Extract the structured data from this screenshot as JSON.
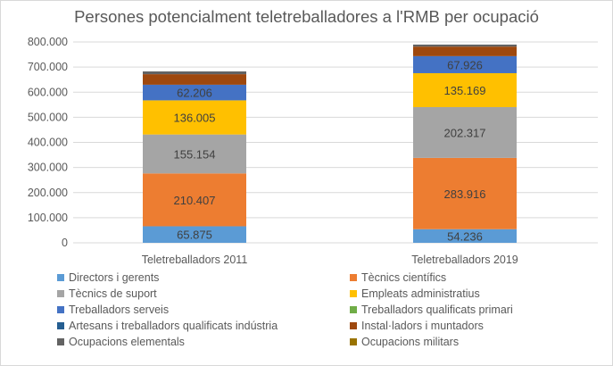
{
  "chart_data": {
    "type": "bar",
    "stacked": true,
    "title": "Persones potencialment teletreballadores a l'RMB per ocupació",
    "categories": [
      "Teletreballadors 2011",
      "Teletreballadors 2019"
    ],
    "ylim": [
      0,
      800000
    ],
    "yticks": [
      "0",
      "100.000",
      "200.000",
      "300.000",
      "400.000",
      "500.000",
      "600.000",
      "700.000",
      "800.000"
    ],
    "grid": true,
    "legend_position": "bottom",
    "series": [
      {
        "name": "Directors i gerents",
        "color": "#5b9bd5",
        "values": [
          65875,
          54236
        ],
        "labels": [
          "65.875",
          "54.236"
        ]
      },
      {
        "name": "Tècnics científics",
        "color": "#ed7d31",
        "values": [
          210407,
          283916
        ],
        "labels": [
          "210.407",
          "283.916"
        ]
      },
      {
        "name": "Tècnics de suport",
        "color": "#a5a5a5",
        "values": [
          155154,
          202317
        ],
        "labels": [
          "155.154",
          "202.317"
        ]
      },
      {
        "name": "Empleats administratius",
        "color": "#ffc000",
        "values": [
          136005,
          135169
        ],
        "labels": [
          "136.005",
          "135.169"
        ]
      },
      {
        "name": "Treballadors serveis",
        "color": "#4472c4",
        "values": [
          62206,
          67926
        ],
        "labels": [
          "62.206",
          "67.926"
        ]
      },
      {
        "name": "Treballadors qualificats primari",
        "color": "#70ad47",
        "values": [
          0,
          0
        ]
      },
      {
        "name": "Artesans i treballadors qualificats indústria",
        "color": "#255e91",
        "values": [
          0,
          0
        ]
      },
      {
        "name": "Instal·ladors i muntadors",
        "color": "#9e480e",
        "values": [
          42000,
          38000
        ]
      },
      {
        "name": "Ocupacions elementals",
        "color": "#636363",
        "values": [
          11000,
          8000
        ]
      },
      {
        "name": "Ocupacions militars",
        "color": "#997300",
        "values": [
          0,
          0
        ]
      }
    ]
  }
}
